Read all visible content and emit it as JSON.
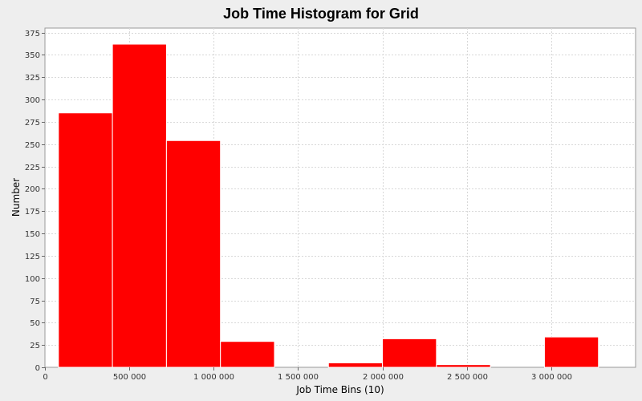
{
  "chart_data": {
    "type": "bar",
    "title": "Job Time Histogram for Grid",
    "xlabel": "Job Time Bins (10)",
    "ylabel": "Number",
    "xlim": [
      0,
      3500000
    ],
    "ylim": [
      0,
      380
    ],
    "x_ticks": [
      0,
      500000,
      1000000,
      1500000,
      2000000,
      2500000,
      3000000
    ],
    "x_tick_labels": [
      "0",
      "500 000",
      "1 000 000",
      "1 500 000",
      "2 000 000",
      "2 500 000",
      "3 000 000"
    ],
    "y_ticks": [
      0,
      25,
      50,
      75,
      100,
      125,
      150,
      175,
      200,
      225,
      250,
      275,
      300,
      325,
      350,
      375
    ],
    "grid": true,
    "bar_color": "#ff0000",
    "bins": [
      {
        "x_start": 80000,
        "x_end": 400000,
        "value": 285
      },
      {
        "x_start": 400000,
        "x_end": 720000,
        "value": 362
      },
      {
        "x_start": 720000,
        "x_end": 1040000,
        "value": 254
      },
      {
        "x_start": 1040000,
        "x_end": 1360000,
        "value": 29
      },
      {
        "x_start": 1360000,
        "x_end": 1680000,
        "value": 0
      },
      {
        "x_start": 1680000,
        "x_end": 2000000,
        "value": 5
      },
      {
        "x_start": 2000000,
        "x_end": 2320000,
        "value": 32
      },
      {
        "x_start": 2320000,
        "x_end": 2640000,
        "value": 3
      },
      {
        "x_start": 2640000,
        "x_end": 2960000,
        "value": 0
      },
      {
        "x_start": 2960000,
        "x_end": 3280000,
        "value": 34
      }
    ]
  }
}
